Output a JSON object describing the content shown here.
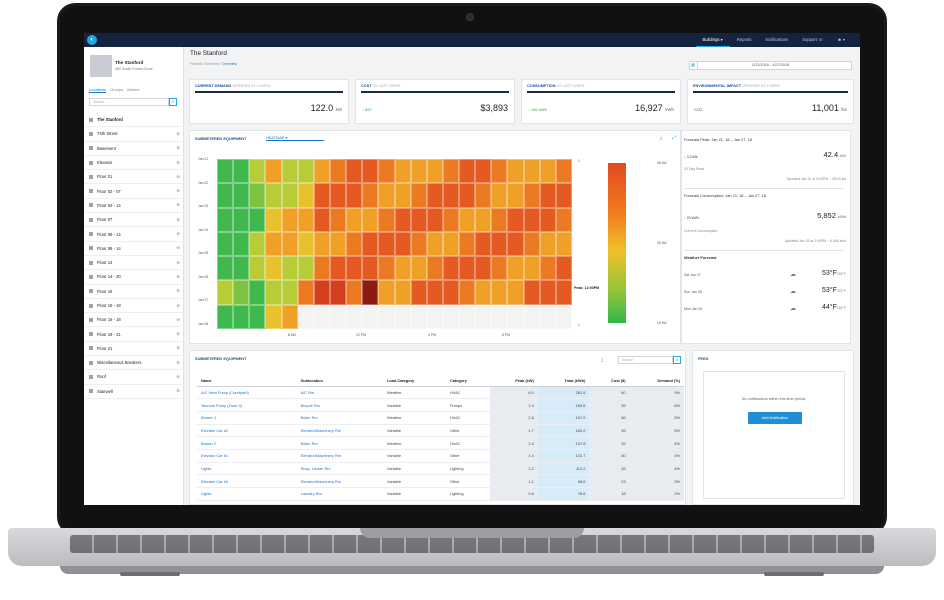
{
  "topnav": [
    "Buildings ▾",
    "Reports",
    "Notifications",
    "Support ☏",
    "☻ ▾"
  ],
  "building": {
    "name": "The Stanford",
    "address": "450 South Forest Circle"
  },
  "sidebar": {
    "tabs": [
      "Locations",
      "Groups",
      "Meters"
    ],
    "search_placeholder": "Search",
    "root": "The Stanford",
    "items": [
      "74th Street",
      "Basement",
      "Elevator",
      "Floor 01",
      "Floor 02 - 07",
      "Floor 02 - 14",
      "Floor 07",
      "Floor 08 - 14",
      "Floor 08 - 14",
      "Floor 14",
      "Floor 14 - 20",
      "Floor 15",
      "Floor 15 - 18",
      "Floor 16 - 18",
      "Floor 19 - 21",
      "Floor 21",
      "Miscellaneous Breakers",
      "Roof",
      "Stairwell"
    ]
  },
  "page": {
    "title": "The Stanford",
    "crumb_parent": "Portfolio Overview",
    "crumb_sep": "/",
    "crumb_current": "Overview",
    "date_range": "1/21/2018 - 1/27/2018"
  },
  "kpis": [
    {
      "label": "CURRENT DEMAND",
      "sub": "UPDATED AT 2:02PM",
      "value": "122.0",
      "unit": "kW",
      "delta": ""
    },
    {
      "label": "COST",
      "sub": "VS LAST WEEK",
      "value": "$3,893",
      "unit": "",
      "delta": "↓ $37"
    },
    {
      "label": "CONSUMPTION",
      "sub": "VS LAST WEEK",
      "value": "16,927",
      "unit": "kWh",
      "delta": "↓ 162 kWh"
    },
    {
      "label": "ENVIRONMENTAL IMPACT",
      "sub": "UPDATED AT 2:02PM",
      "value": "11,001",
      "unit": "lbs",
      "delta": "CO2"
    }
  ],
  "heatmap": {
    "title": "SUBMETERED EQUIPMENT",
    "view": "HEATMAP ▾",
    "ylabels": [
      "Jan 21",
      "Jan 22",
      "Jan 23",
      "Jan 24",
      "Jan 25",
      "Jan 26",
      "Jan 27",
      "Jan 28"
    ],
    "xlabels": [
      "8 AM",
      "12 PM",
      "4 PM",
      "8 PM"
    ],
    "colorbar_labels": [
      "45 kW",
      "30 kW",
      "15 kW"
    ],
    "peak_label": "Peak: 12:00PM"
  },
  "forecast": {
    "peak_title": "Forecast Peak: Jan 21, 18 – Jan 27, 18",
    "peak_delta": "↑ 3.2 kW",
    "peak_value": "42.4",
    "peak_unit": "kW",
    "peak_note": "30 Day Peak",
    "peak_updated": "Updated Jan 21 at 5:00PM ↑ 269.5 kw",
    "cons_title": "Forecast Consumption: Jan 21, 18 – Jan 27, 18",
    "cons_delta": "↑ 23 kWh",
    "cons_value": "5,852",
    "cons_unit": "kWh",
    "cons_note": "Current Consumption",
    "cons_updated": "Updated Jan 26 at 2:00PM ↑ 4,346 kwh",
    "weather_title": "Weather Forecast",
    "weather": [
      {
        "day": "Sat Jan 27",
        "temp": "53°F",
        "low": "/36°F"
      },
      {
        "day": "Sun Jan 28",
        "temp": "53°F",
        "low": "/43°F"
      },
      {
        "day": "Mon Jan 29",
        "temp": "44°F",
        "low": "/36°F"
      }
    ]
  },
  "table": {
    "title": "SUBMETERED EQUIPMENT",
    "search_placeholder": "Search",
    "headers": [
      "Name",
      "Sublocation",
      "Load Category",
      "Category",
      "Peak (kW)",
      "Total (kWh)",
      "Cost ($)",
      "Demand (%)"
    ],
    "rows": [
      [
        "A/C Heat Pump (Courtyard)",
        "A/C Rm",
        "Weather",
        "HVAC",
        "6.0",
        "261.5",
        "60",
        "9%"
      ],
      [
        "Vacuum Pump (Zone 3)",
        "Bicycle Rm",
        "Variable",
        "Pumps",
        "1.4",
        "169.6",
        "39",
        "6%"
      ],
      [
        "Blower 1",
        "Boiler Rm",
        "Weather",
        "HVAC",
        "2.8",
        "157.9",
        "36",
        "5%"
      ],
      [
        "Elevator Car #2",
        "Elevator/Machinery Rm",
        "Variable",
        "Other",
        "1.7",
        "152.2",
        "35",
        "5%"
      ],
      [
        "Blower 2",
        "Boiler Rm",
        "Weather",
        "HVAC",
        "2.4",
        "137.8",
        "32",
        "4%"
      ],
      [
        "Elevator Car #1",
        "Elevator/Machinery Rm",
        "Variable",
        "Other",
        "1.4",
        "131.7",
        "30",
        "4%"
      ],
      [
        "Lights",
        "Shop, Locker Rm",
        "Variable",
        "Lighting",
        "1.2",
        "112.2",
        "26",
        "4%"
      ],
      [
        "Elevator Car #3",
        "Elevator/Machinery Rm",
        "Variable",
        "Other",
        "1.1",
        "98.6",
        "23",
        "3%"
      ],
      [
        "Lights",
        "Laundry Rm",
        "Variable",
        "Lighting",
        "0.6",
        "76.6",
        "18",
        "2%"
      ]
    ]
  },
  "feed": {
    "title": "FEED",
    "message": "No notifications within this time period.",
    "button": "Add Notification"
  }
}
